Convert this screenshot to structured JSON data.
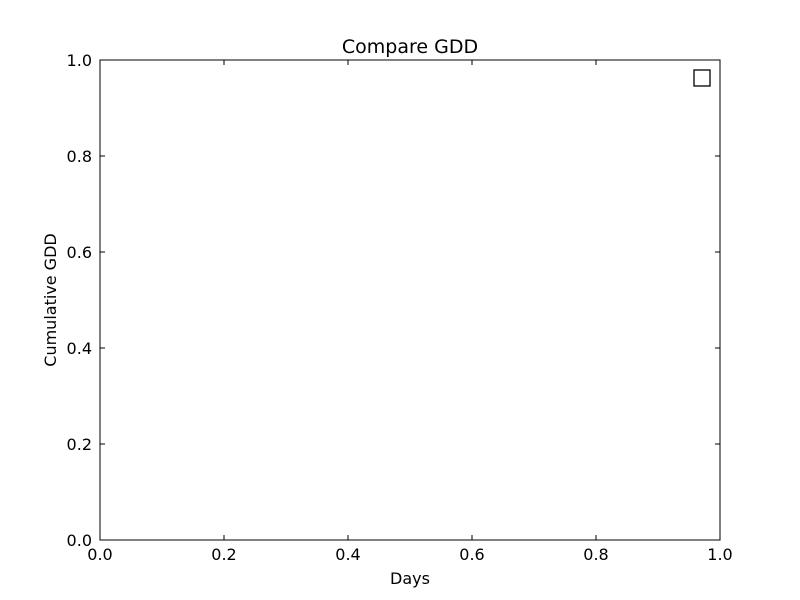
{
  "chart_data": {
    "type": "line",
    "title": "Compare GDD",
    "xlabel": "Days",
    "ylabel": "Cumulative GDD",
    "xlim": [
      0.0,
      1.0
    ],
    "ylim": [
      0.0,
      1.0
    ],
    "xticks": [
      {
        "value": 0.0,
        "label": "0.0"
      },
      {
        "value": 0.2,
        "label": "0.2"
      },
      {
        "value": 0.4,
        "label": "0.4"
      },
      {
        "value": 0.6,
        "label": "0.6"
      },
      {
        "value": 0.8,
        "label": "0.8"
      },
      {
        "value": 1.0,
        "label": "1.0"
      }
    ],
    "yticks": [
      {
        "value": 0.0,
        "label": "0.0"
      },
      {
        "value": 0.2,
        "label": "0.2"
      },
      {
        "value": 0.4,
        "label": "0.4"
      },
      {
        "value": 0.6,
        "label": "0.6"
      },
      {
        "value": 0.8,
        "label": "0.8"
      },
      {
        "value": 1.0,
        "label": "1.0"
      }
    ],
    "series": [],
    "grid": false,
    "legend": {
      "placement": "top-right",
      "entries": []
    }
  },
  "colors": {
    "axes": "#000000",
    "background": "#ffffff",
    "legend_border": "#000000"
  }
}
